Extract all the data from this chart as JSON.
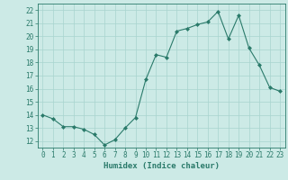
{
  "x": [
    0,
    1,
    2,
    3,
    4,
    5,
    6,
    7,
    8,
    9,
    10,
    11,
    12,
    13,
    14,
    15,
    16,
    17,
    18,
    19,
    20,
    21,
    22,
    23
  ],
  "y": [
    14.0,
    13.7,
    13.1,
    13.1,
    12.9,
    12.5,
    11.7,
    12.1,
    13.0,
    13.8,
    16.7,
    18.6,
    18.4,
    20.4,
    20.6,
    20.9,
    21.1,
    21.9,
    19.8,
    21.6,
    19.1,
    17.8,
    16.1,
    15.8
  ],
  "line_color": "#2a7a6a",
  "marker": "D",
  "marker_size": 2.0,
  "bg_color": "#cceae6",
  "grid_color": "#a8d4cf",
  "tick_color": "#2a7a6a",
  "xlabel": "Humidex (Indice chaleur)",
  "xlim": [
    -0.5,
    23.5
  ],
  "ylim": [
    11.5,
    22.5
  ],
  "yticks": [
    12,
    13,
    14,
    15,
    16,
    17,
    18,
    19,
    20,
    21,
    22
  ],
  "xticks": [
    0,
    1,
    2,
    3,
    4,
    5,
    6,
    7,
    8,
    9,
    10,
    11,
    12,
    13,
    14,
    15,
    16,
    17,
    18,
    19,
    20,
    21,
    22,
    23
  ],
  "xlabel_fontsize": 6.5,
  "tick_fontsize": 5.5
}
